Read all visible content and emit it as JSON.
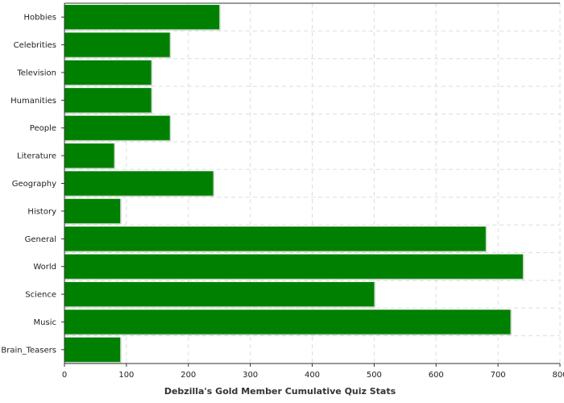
{
  "chart_data": {
    "type": "bar",
    "orientation": "horizontal",
    "categories": [
      "Hobbies",
      "Celebrities",
      "Television",
      "Humanities",
      "People",
      "Literature",
      "Geography",
      "History",
      "General",
      "World",
      "Science",
      "Music",
      "Brain_Teasers"
    ],
    "values": [
      250,
      170,
      140,
      140,
      170,
      80,
      240,
      90,
      680,
      740,
      500,
      720,
      90
    ],
    "title": "",
    "xlabel": "Debzilla's Gold Member Cumulative Quiz Stats",
    "ylabel": "",
    "xlim": [
      0,
      800
    ],
    "xticks": [
      "0",
      "100",
      "200",
      "300",
      "400",
      "500",
      "600",
      "700",
      "800"
    ],
    "grid": true,
    "legend": "none",
    "colors": {
      "bar": "#008000",
      "grid": "#dddddd",
      "axis": "#333333"
    }
  }
}
